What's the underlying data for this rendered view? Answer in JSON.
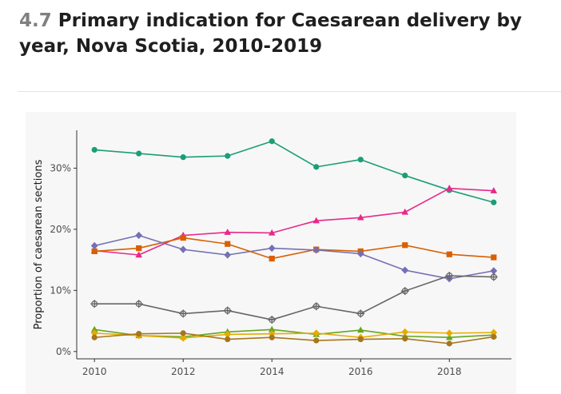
{
  "header": {
    "number": "4.7",
    "title": "Primary indication for Caesarean delivery by year, Nova Scotia, 2010-2019"
  },
  "chart_data": {
    "type": "line",
    "title": "Primary indication for Caesarean delivery by year, Nova Scotia, 2010-2019",
    "xlabel": "",
    "ylabel": "Proportion of caesarean sections",
    "x": [
      2010,
      2011,
      2012,
      2013,
      2014,
      2015,
      2016,
      2017,
      2018,
      2019
    ],
    "x_ticks": [
      2010,
      2012,
      2014,
      2016,
      2018
    ],
    "x_tick_labels": [
      "2010",
      "2012",
      "2014",
      "2016",
      "2018"
    ],
    "xlim": [
      2009.6,
      2019.4
    ],
    "y_ticks": [
      0,
      10,
      20,
      30
    ],
    "y_tick_labels": [
      "0%",
      "10%",
      "20%",
      "30%"
    ],
    "ylim": [
      -1.2,
      36.2
    ],
    "grid": false,
    "legend": "none",
    "series": [
      {
        "color": "#1b9e77",
        "marker": "circle",
        "values": [
          33.0,
          32.4,
          31.8,
          32.0,
          34.4,
          30.2,
          31.4,
          28.8,
          26.4,
          24.4
        ]
      },
      {
        "color": "#e7298a",
        "marker": "triangle",
        "values": [
          16.5,
          15.8,
          19.0,
          19.5,
          19.4,
          21.4,
          21.9,
          22.8,
          26.7,
          26.3
        ]
      },
      {
        "color": "#d95f02",
        "marker": "square",
        "values": [
          16.4,
          16.9,
          18.6,
          17.6,
          15.2,
          16.7,
          16.4,
          17.4,
          15.9,
          15.4
        ]
      },
      {
        "color": "#7570b3",
        "marker": "diamond",
        "values": [
          17.3,
          19.0,
          16.7,
          15.8,
          16.9,
          16.6,
          16.0,
          13.3,
          11.9,
          13.2
        ]
      },
      {
        "color": "#666666",
        "marker": "plus",
        "values": [
          7.8,
          7.8,
          6.2,
          6.7,
          5.2,
          7.4,
          6.2,
          9.9,
          12.4,
          12.2
        ]
      },
      {
        "color": "#66a61e",
        "marker": "triangle",
        "values": [
          3.6,
          2.6,
          2.4,
          3.2,
          3.6,
          2.8,
          3.5,
          2.5,
          2.3,
          2.7
        ]
      },
      {
        "color": "#e6ab02",
        "marker": "diamond",
        "values": [
          3.0,
          2.6,
          2.2,
          2.8,
          2.9,
          3.0,
          2.3,
          3.2,
          3.0,
          3.1
        ]
      },
      {
        "color": "#a6761d",
        "marker": "circle",
        "values": [
          2.3,
          2.9,
          3.0,
          2.0,
          2.3,
          1.8,
          2.0,
          2.1,
          1.3,
          2.4
        ]
      }
    ]
  }
}
